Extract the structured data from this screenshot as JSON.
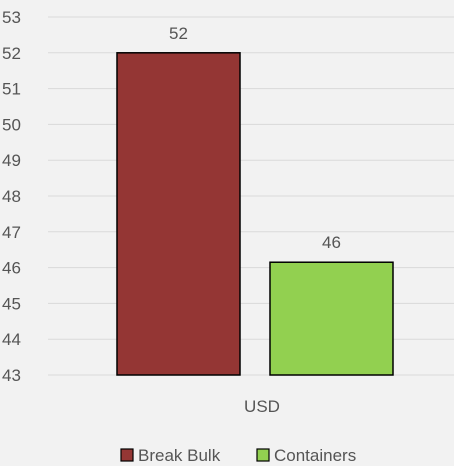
{
  "chart_data": {
    "type": "bar",
    "categories": [
      "USD"
    ],
    "series": [
      {
        "name": "Break Bulk",
        "values": [
          52
        ],
        "color": "#943634",
        "data_label": "52"
      },
      {
        "name": "Containers",
        "values": [
          46.15
        ],
        "color": "#92d050",
        "data_label": "46"
      }
    ],
    "ylim": [
      43,
      53
    ],
    "yticks": [
      43,
      44,
      45,
      46,
      47,
      48,
      49,
      50,
      51,
      52,
      53
    ],
    "grid": true,
    "legend_position": "bottom",
    "title": "",
    "xlabel": "",
    "ylabel": ""
  }
}
